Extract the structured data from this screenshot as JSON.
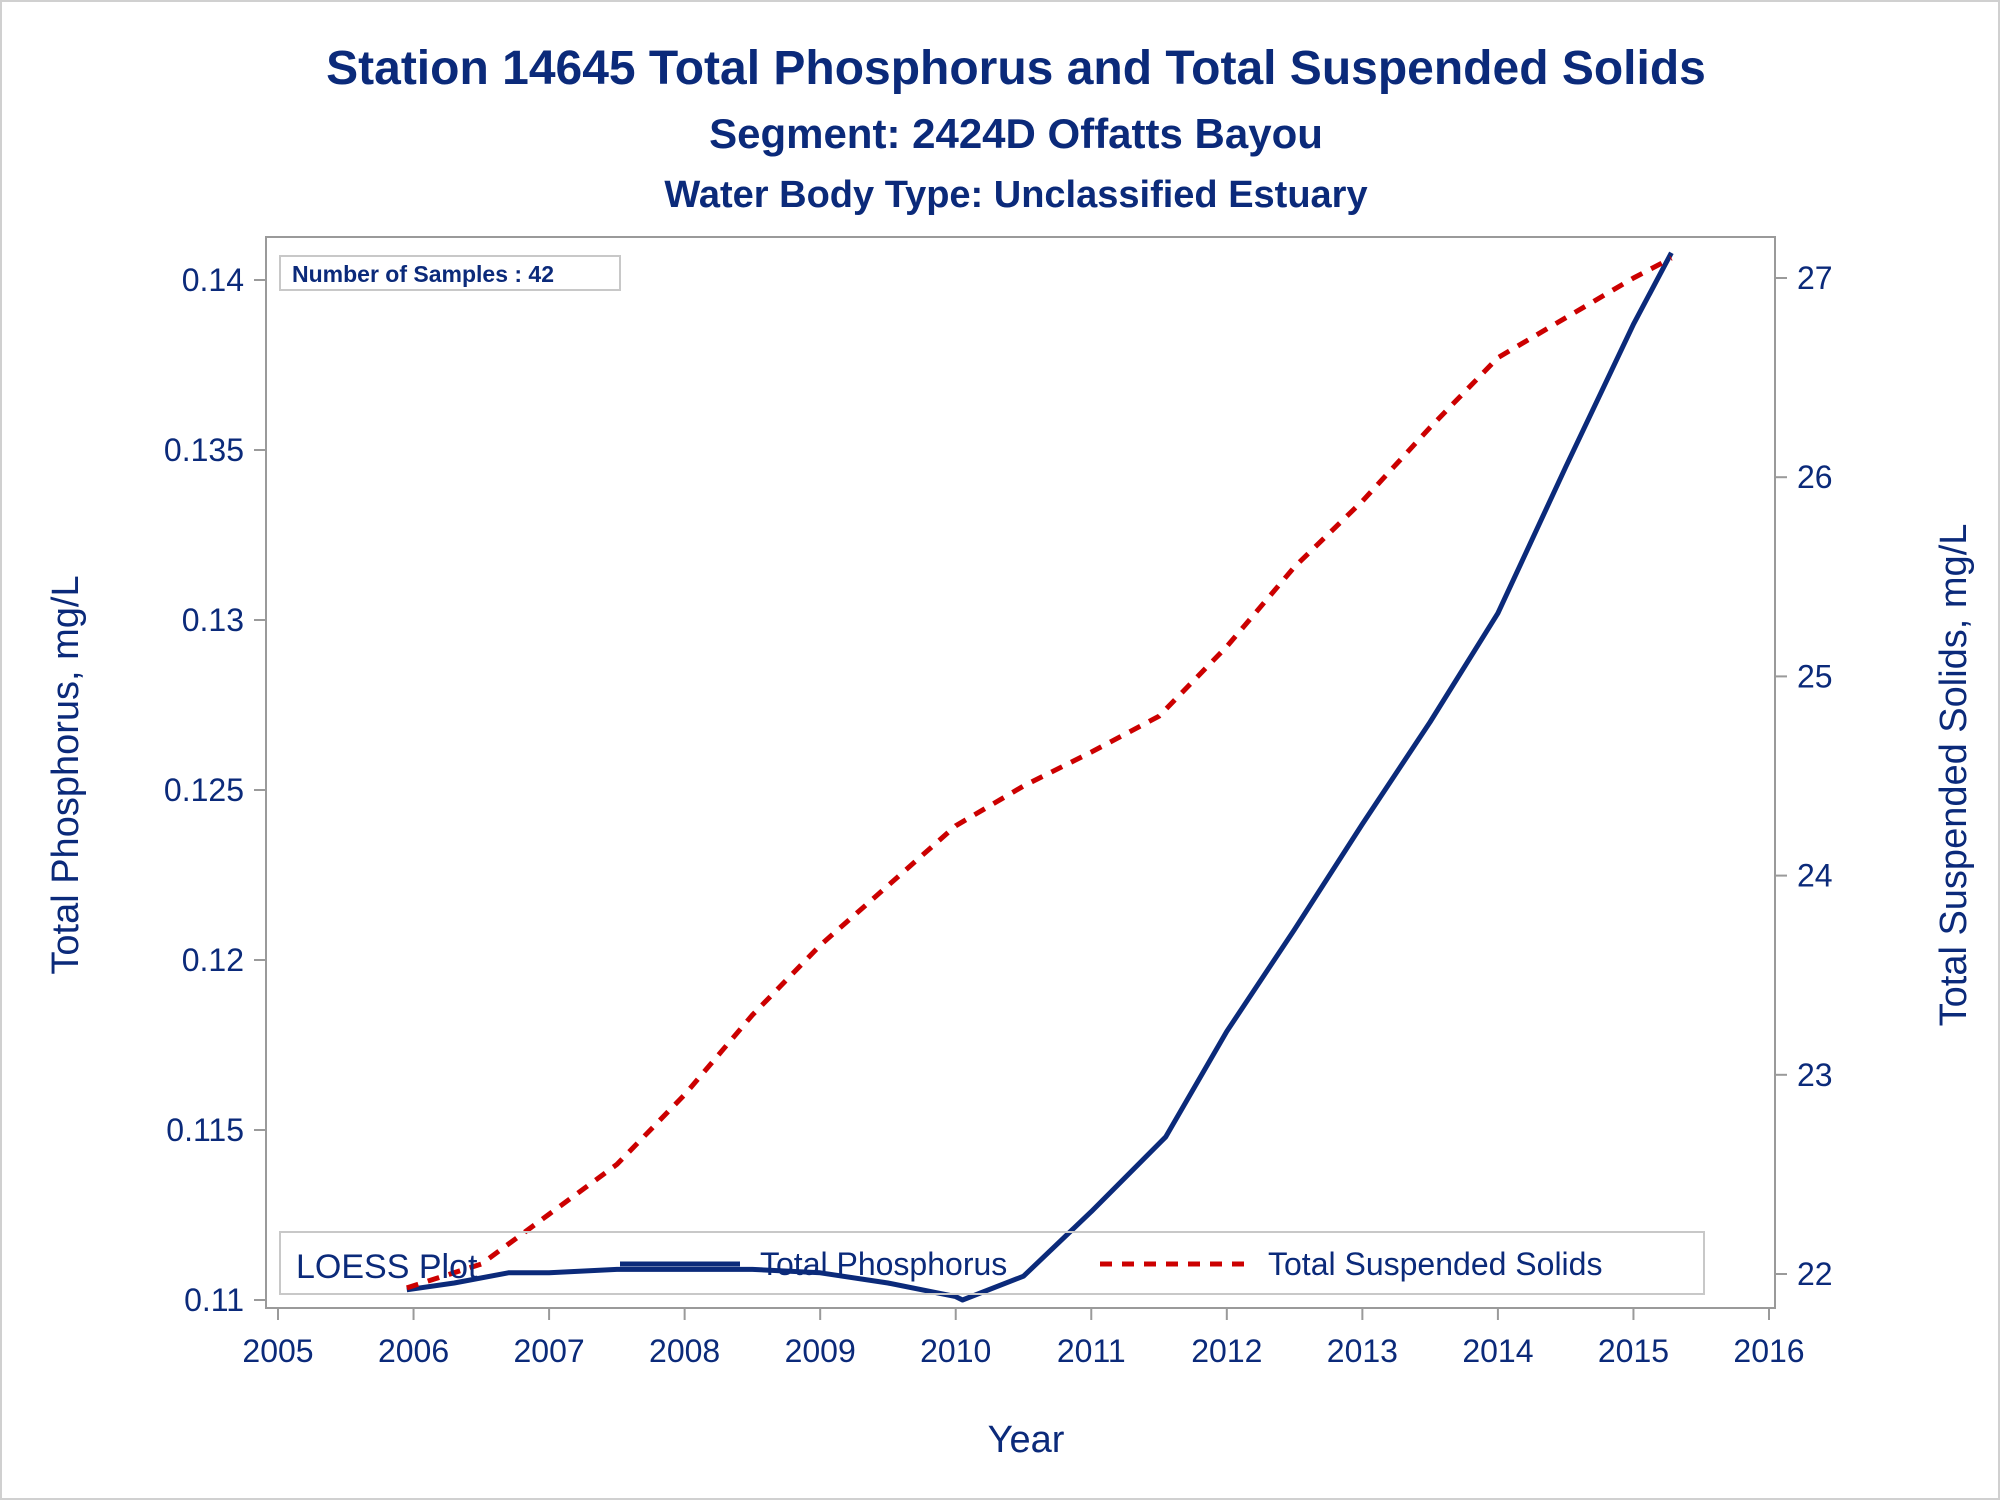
{
  "chart_data": {
    "type": "line",
    "title": "Station 14645  Total Phosphorus and Total Suspended Solids",
    "subtitle": "Segment: 2424D  Offatts Bayou",
    "subtitle2": "Water Body Type: Unclassified Estuary",
    "xlabel": "Year",
    "ylabel_left": "Total Phosphorus, mg/L",
    "ylabel_right": "Total Suspended Solids, mg/L",
    "xlim": [
      2005,
      2016
    ],
    "ylim_left": [
      0.11,
      0.14
    ],
    "ylim_right": [
      22,
      27
    ],
    "x_ticks": [
      "2005",
      "2006",
      "2007",
      "2008",
      "2009",
      "2010",
      "2011",
      "2012",
      "2013",
      "2014",
      "2015",
      "2016"
    ],
    "y_left_ticks": [
      "0.11",
      "0.115",
      "0.12",
      "0.125",
      "0.13",
      "0.135",
      "0.14"
    ],
    "y_right_ticks": [
      "22",
      "23",
      "24",
      "25",
      "26",
      "27"
    ],
    "grid": false,
    "annotation": "Number of Samples : 42",
    "legend_title": "LOESS Plot",
    "legend_position": "bottom-left inside",
    "series": [
      {
        "name": "Total Phosphorus",
        "axis": "left",
        "color": "#0b2a7a",
        "style": "solid",
        "x": [
          2005.95,
          2006.3,
          2006.7,
          2007.0,
          2007.5,
          2008.0,
          2008.5,
          2009.0,
          2009.5,
          2010.0,
          2010.05,
          2010.5,
          2011.0,
          2011.55,
          2012.0,
          2012.5,
          2013.0,
          2013.5,
          2014.0,
          2014.5,
          2015.0,
          2015.28
        ],
        "y": [
          0.1103,
          0.1105,
          0.1108,
          0.1108,
          0.1109,
          0.1109,
          0.1109,
          0.1108,
          0.1105,
          0.1101,
          0.11,
          0.1107,
          0.1126,
          0.1148,
          0.1179,
          0.1209,
          0.124,
          0.127,
          0.1302,
          0.1345,
          0.1387,
          0.1408
        ]
      },
      {
        "name": "Total Suspended Solids",
        "axis": "right",
        "color": "#cc0000",
        "style": "dashed",
        "x": [
          2005.95,
          2006.5,
          2007.0,
          2007.5,
          2008.0,
          2008.5,
          2009.0,
          2009.5,
          2010.0,
          2010.5,
          2011.0,
          2011.5,
          2012.0,
          2012.5,
          2013.0,
          2013.5,
          2014.0,
          2014.5,
          2015.0,
          2015.28
        ],
        "y": [
          21.93,
          22.05,
          22.3,
          22.55,
          22.9,
          23.3,
          23.65,
          23.95,
          24.25,
          24.45,
          24.62,
          24.8,
          25.15,
          25.55,
          25.88,
          26.25,
          26.6,
          26.8,
          27.0,
          27.1
        ]
      }
    ]
  }
}
